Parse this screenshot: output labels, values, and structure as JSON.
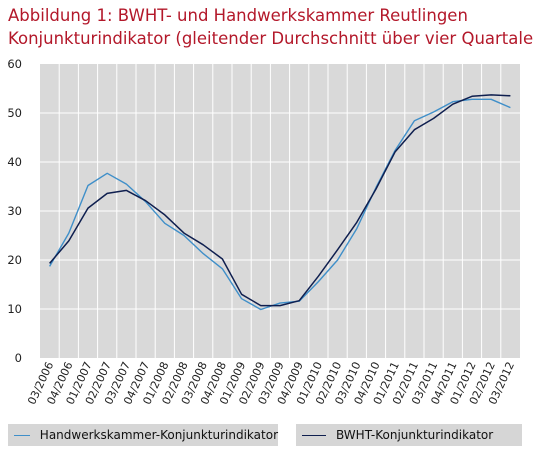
{
  "title": {
    "line1": "Abbildung 1: BWHT- und Handwerkskammer  Reutlingen",
    "line2": "Konjunkturindikator (gleitender Durchschnitt über vier Quartale)"
  },
  "colors": {
    "title": "#b3182a",
    "series_hwk": "#3f8fc9",
    "series_bwht": "#0f1f4f",
    "plot_background": "#d9d9d9",
    "grid": "#ffffff",
    "legend_background": "#d6d6d6"
  },
  "chart_data": {
    "type": "line",
    "grid": true,
    "legend_position": "bottom",
    "ylim": [
      0,
      60
    ],
    "yticks": [
      0,
      10,
      20,
      30,
      40,
      50,
      60
    ],
    "x": [
      "03/2006",
      "04/2006",
      "01/2007",
      "02/2007",
      "03/2007",
      "04/2007",
      "01/2008",
      "02/2008",
      "03/2008",
      "04/2008",
      "01/2009",
      "02/2009",
      "03/2009",
      "04/2009",
      "01/2010",
      "02/2010",
      "03/2010",
      "04/2010",
      "01/2011",
      "02/2011",
      "03/2011",
      "04/2011",
      "01/2012",
      "02/2012",
      "03/2012"
    ],
    "series": [
      {
        "name": "Handwerkskammer-Konjunkturindikator",
        "color": "#3f8fc9",
        "values": [
          18.7,
          25.5,
          35.2,
          37.7,
          35.5,
          31.9,
          27.5,
          25.0,
          21.3,
          18.2,
          12.1,
          9.9,
          11.2,
          11.6,
          15.6,
          20.0,
          26.4,
          34.8,
          42.4,
          48.4,
          50.2,
          52.3,
          52.8,
          52.8,
          51.1
        ]
      },
      {
        "name": "BWHT-Konjunkturindikator",
        "color": "#0f1f4f",
        "values": [
          19.3,
          23.9,
          30.6,
          33.6,
          34.2,
          32.1,
          29.2,
          25.5,
          23.1,
          20.2,
          13.0,
          10.7,
          10.7,
          11.7,
          16.7,
          22.1,
          27.7,
          34.5,
          42.1,
          46.6,
          48.9,
          51.8,
          53.4,
          53.7,
          53.5
        ]
      }
    ]
  }
}
